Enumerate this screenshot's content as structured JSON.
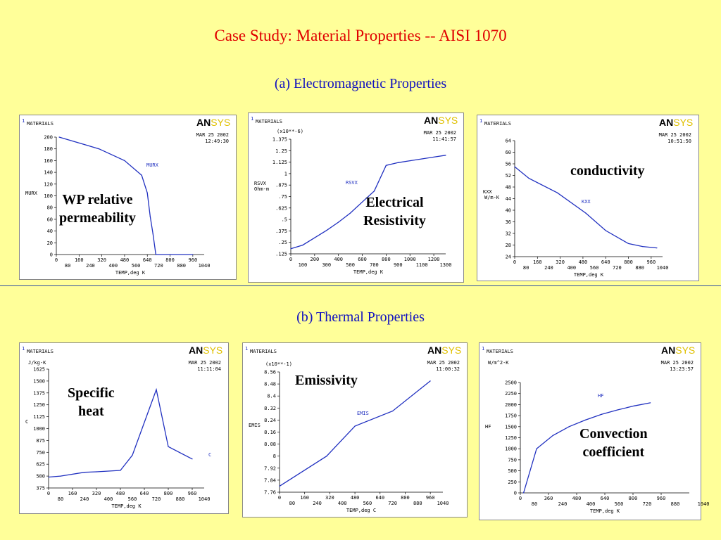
{
  "title": "Case Study: Material Properties -- AISI 1070",
  "section_em": "(a) Electromagnetic Properties",
  "section_thermal": "(b) Thermal Properties",
  "colors": {
    "background": "#ffff99",
    "title": "#e00000",
    "subtitle": "#1010c0",
    "curve": "#2030c0"
  },
  "chart_data": [
    {
      "type": "line",
      "header": "MATERIALS",
      "index_label": "1",
      "date": "MAR 25 2002",
      "time": "12:49:30",
      "logo": "ANSYS",
      "callout": "WP relative\npermeability",
      "ylabel": "MURX",
      "series_label": "MURX",
      "xlabel": "TEMP,deg K",
      "yunit": "",
      "multiplier": "",
      "xlim": [
        0,
        1040
      ],
      "ylim": [
        0,
        200
      ],
      "xticks_top": [
        "0",
        "160",
        "320",
        "480",
        "640",
        "800",
        "960"
      ],
      "xticks_bottom": [
        "80",
        "240",
        "400",
        "560",
        "720",
        "880",
        "1040"
      ],
      "yticks": [
        "0",
        "20",
        "40",
        "60",
        "80",
        "100",
        "120",
        "140",
        "160",
        "180",
        "200"
      ],
      "x": [
        20,
        300,
        480,
        600,
        640,
        660,
        680,
        700,
        960
      ],
      "y": [
        200,
        180,
        160,
        135,
        105,
        65,
        35,
        0,
        0
      ]
    },
    {
      "type": "line",
      "header": "MATERIALS",
      "index_label": "1",
      "date": "MAR 25 2002",
      "time": "11:41:57",
      "logo": "ANSYS",
      "callout": "Electrical\nResistivity",
      "ylabel": "RSVX",
      "series_label": "RSVX",
      "xlabel": "TEMP,deg K",
      "yunit": "Ohm-m",
      "multiplier": "(x10**-6)",
      "xlim": [
        0,
        1300
      ],
      "ylim": [
        0.125,
        1.375
      ],
      "xticks_top": [
        "0",
        "200",
        "400",
        "600",
        "800",
        "1000",
        "1200"
      ],
      "xticks_bottom": [
        "100",
        "300",
        "500",
        "700",
        "900",
        "1100",
        "1300"
      ],
      "yticks": [
        ".125",
        ".25",
        ".375",
        ".5",
        ".625",
        ".75",
        ".875",
        "1",
        "1.125",
        "1.25",
        "1.375"
      ],
      "x": [
        0,
        100,
        200,
        300,
        400,
        500,
        600,
        700,
        800,
        900,
        1000,
        1100,
        1200,
        1300
      ],
      "y": [
        0.18,
        0.22,
        0.3,
        0.38,
        0.47,
        0.57,
        0.69,
        0.81,
        1.09,
        1.12,
        1.14,
        1.16,
        1.18,
        1.2
      ]
    },
    {
      "type": "line",
      "header": "MATERIALS",
      "index_label": "1",
      "date": "MAR 25 2002",
      "time": "10:51:50",
      "logo": "ANSYS",
      "callout": "conductivity",
      "ylabel": "KXX",
      "series_label": "KXX",
      "xlabel": "TEMP,deg K",
      "yunit": "W/m-K",
      "multiplier": "",
      "xlim": [
        0,
        1040
      ],
      "ylim": [
        24,
        64
      ],
      "xticks_top": [
        "0",
        "160",
        "320",
        "480",
        "640",
        "800",
        "960"
      ],
      "xticks_bottom": [
        "80",
        "240",
        "400",
        "560",
        "720",
        "880",
        "1040"
      ],
      "yticks": [
        "24",
        "28",
        "32",
        "36",
        "40",
        "44",
        "48",
        "52",
        "56",
        "60",
        "64"
      ],
      "x": [
        0,
        100,
        300,
        500,
        640,
        800,
        900,
        1000
      ],
      "y": [
        55,
        51,
        46,
        39,
        33,
        28.5,
        27.5,
        27
      ]
    },
    {
      "type": "line",
      "header": "MATERIALS",
      "index_label": "1",
      "date": "MAR 25 2002",
      "time": "11:11:04",
      "logo": "ANSYS",
      "callout": "Specific\nheat",
      "ylabel": "C",
      "series_label": "C",
      "xlabel": "TEMP,deg K",
      "yunit": "J/kg-K",
      "multiplier": "",
      "xlim": [
        0,
        1040
      ],
      "ylim": [
        375,
        1625
      ],
      "xticks_top": [
        "0",
        "160",
        "320",
        "480",
        "640",
        "800",
        "960"
      ],
      "xticks_bottom": [
        "80",
        "240",
        "400",
        "560",
        "720",
        "880",
        "1040"
      ],
      "yticks": [
        "375",
        "500",
        "625",
        "750",
        "875",
        "1000",
        "1125",
        "1250",
        "1375",
        "1500",
        "1625"
      ],
      "x": [
        0,
        80,
        240,
        320,
        480,
        560,
        720,
        800,
        960
      ],
      "y": [
        490,
        500,
        540,
        545,
        560,
        720,
        1410,
        810,
        680
      ]
    },
    {
      "type": "line",
      "header": "MATERIALS",
      "index_label": "1",
      "date": "MAR 25 2002",
      "time": "11:00:32",
      "logo": "ANSYS",
      "callout": "Emissivity",
      "ylabel": "EMIS",
      "series_label": "EMIS",
      "xlabel": "TEMP,deg C",
      "yunit": "",
      "multiplier": "(x10**-1)",
      "xlim": [
        0,
        1040
      ],
      "ylim": [
        7.76,
        8.56
      ],
      "xticks_top": [
        "0",
        "160",
        "320",
        "480",
        "640",
        "800",
        "960"
      ],
      "xticks_bottom": [
        "80",
        "240",
        "400",
        "560",
        "720",
        "880",
        "1040"
      ],
      "yticks": [
        "7.76",
        "7.84",
        "7.92",
        "8",
        "8.08",
        "8.16",
        "8.24",
        "8.32",
        "8.4",
        "8.48",
        "8.56"
      ],
      "x": [
        0,
        300,
        480,
        720,
        960
      ],
      "y": [
        7.8,
        8.0,
        8.2,
        8.3,
        8.5
      ]
    },
    {
      "type": "line",
      "header": "MATERIALS",
      "index_label": "1",
      "date": "MAR 25 2002",
      "time": "13:23:57",
      "logo": "ANSYS",
      "callout": "Convection\ncoefficient",
      "ylabel": "HF",
      "series_label": "HF",
      "xlabel": "TEMP,deg K",
      "yunit": "W/m^2-K",
      "multiplier": "",
      "xlim": [
        0,
        1040
      ],
      "ylim": [
        0,
        2500
      ],
      "xticks_top": [
        "0",
        "360",
        "480",
        "640",
        "800",
        "960"
      ],
      "xticks_bottom": [
        "80",
        "240",
        "400",
        "560",
        "720",
        "880",
        "1040"
      ],
      "yticks": [
        "0",
        "250",
        "500",
        "750",
        "1000",
        "1250",
        "1500",
        "1750",
        "2000",
        "2250",
        "2500"
      ],
      "x": [
        20,
        100,
        200,
        300,
        400,
        500,
        600,
        700,
        800
      ],
      "y": [
        0,
        1000,
        1300,
        1500,
        1650,
        1780,
        1880,
        1970,
        2040
      ]
    }
  ]
}
